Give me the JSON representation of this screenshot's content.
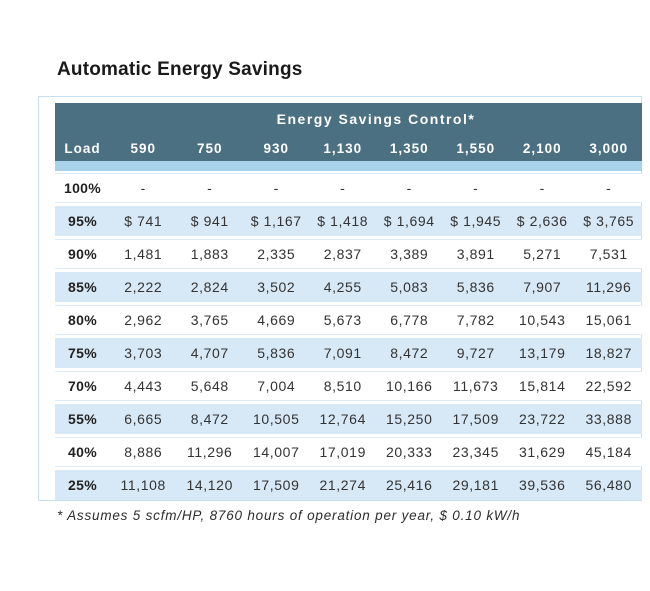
{
  "title": "Automatic Energy Savings",
  "footnote": "* Assumes 5 scfm/HP, 8760 hours of operation per year, $ 0.10 kW/h",
  "colors": {
    "header_bg": "#4b7082",
    "accent_band": "#a8d2e9",
    "row_alt_bg": "#d7e9f7",
    "frame_border": "#c6dfef",
    "header_text": "#ffffff",
    "body_text": "#333333"
  },
  "chart_data": {
    "type": "table",
    "title": "Automatic Energy Savings",
    "group_header": "Energy Savings Control*",
    "columns": [
      "Load",
      "590",
      "750",
      "930",
      "1,130",
      "1,350",
      "1,550",
      "2,100",
      "3,000"
    ],
    "rows": [
      {
        "load": "100%",
        "values": [
          "-",
          "-",
          "-",
          "-",
          "-",
          "-",
          "-",
          "-"
        ]
      },
      {
        "load": "95%",
        "values": [
          "$ 741",
          "$ 941",
          "$ 1,167",
          "$ 1,418",
          "$ 1,694",
          "$ 1,945",
          "$ 2,636",
          "$ 3,765"
        ]
      },
      {
        "load": "90%",
        "values": [
          "1,481",
          "1,883",
          "2,335",
          "2,837",
          "3,389",
          "3,891",
          "5,271",
          "7,531"
        ]
      },
      {
        "load": "85%",
        "values": [
          "2,222",
          "2,824",
          "3,502",
          "4,255",
          "5,083",
          "5,836",
          "7,907",
          "11,296"
        ]
      },
      {
        "load": "80%",
        "values": [
          "2,962",
          "3,765",
          "4,669",
          "5,673",
          "6,778",
          "7,782",
          "10,543",
          "15,061"
        ]
      },
      {
        "load": "75%",
        "values": [
          "3,703",
          "4,707",
          "5,836",
          "7,091",
          "8,472",
          "9,727",
          "13,179",
          "18,827"
        ]
      },
      {
        "load": "70%",
        "values": [
          "4,443",
          "5,648",
          "7,004",
          "8,510",
          "10,166",
          "11,673",
          "15,814",
          "22,592"
        ]
      },
      {
        "load": "55%",
        "values": [
          "6,665",
          "8,472",
          "10,505",
          "12,764",
          "15,250",
          "17,509",
          "23,722",
          "33,888"
        ]
      },
      {
        "load": "40%",
        "values": [
          "8,886",
          "11,296",
          "14,007",
          "17,019",
          "20,333",
          "23,345",
          "31,629",
          "45,184"
        ]
      },
      {
        "load": "25%",
        "values": [
          "11,108",
          "14,120",
          "17,509",
          "21,274",
          "25,416",
          "29,181",
          "39,536",
          "56,480"
        ]
      }
    ],
    "footnote": "* Assumes 5 scfm/HP, 8760 hours of operation per year, $ 0.10 kW/h"
  }
}
